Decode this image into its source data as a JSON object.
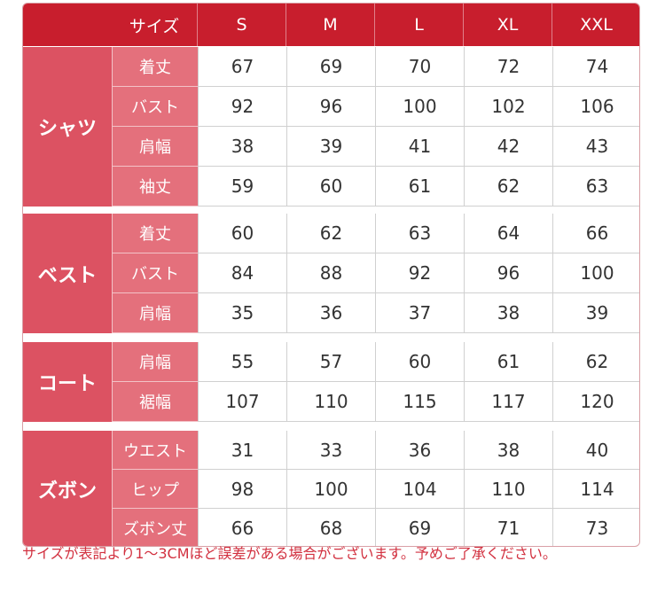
{
  "header": {
    "label": "サイズ",
    "sizes": [
      "S",
      "M",
      "L",
      "XL",
      "XXL"
    ]
  },
  "groups": [
    {
      "name": "シャツ",
      "rows": [
        {
          "item": "着丈",
          "values": [
            67,
            69,
            70,
            72,
            74
          ]
        },
        {
          "item": "バスト",
          "values": [
            92,
            96,
            100,
            102,
            106
          ]
        },
        {
          "item": "肩幅",
          "values": [
            38,
            39,
            41,
            42,
            43
          ]
        },
        {
          "item": "袖丈",
          "values": [
            59,
            60,
            61,
            62,
            63
          ]
        }
      ]
    },
    {
      "name": "ベスト",
      "rows": [
        {
          "item": "着丈",
          "values": [
            60,
            62,
            63,
            64,
            66
          ]
        },
        {
          "item": "バスト",
          "values": [
            84,
            88,
            92,
            96,
            100
          ]
        },
        {
          "item": "肩幅",
          "values": [
            35,
            36,
            37,
            38,
            39
          ]
        }
      ]
    },
    {
      "name": "コート",
      "rows": [
        {
          "item": "肩幅",
          "values": [
            55,
            57,
            60,
            61,
            62
          ]
        },
        {
          "item": "裾幅",
          "values": [
            107,
            110,
            115,
            117,
            120
          ]
        }
      ]
    },
    {
      "name": "ズボン",
      "rows": [
        {
          "item": "ウエスト",
          "values": [
            31,
            33,
            36,
            38,
            40
          ]
        },
        {
          "item": "ヒップ",
          "values": [
            98,
            100,
            104,
            110,
            114
          ]
        },
        {
          "item": "ズボン丈",
          "values": [
            66,
            68,
            69,
            71,
            73
          ]
        }
      ]
    }
  ],
  "note": "サイズが表記より1～3CMほど誤差がある場合がございます。予めご了承ください。"
}
